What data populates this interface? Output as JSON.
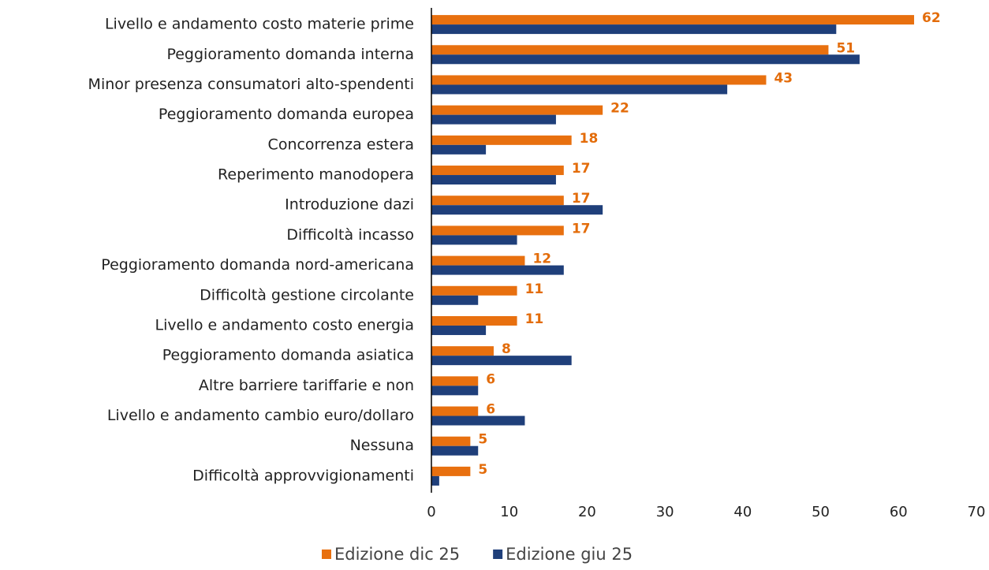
{
  "chart_data": {
    "type": "hbar",
    "categories": [
      "Livello e andamento costo materie prime",
      "Peggioramento domanda interna",
      "Minor presenza consumatori alto-spendenti",
      "Peggioramento domanda europea",
      "Concorrenza estera",
      "Reperimento manodopera",
      "Introduzione dazi",
      "Difficoltà incasso",
      "Peggioramento domanda nord-americana",
      "Difficoltà gestione circolante",
      "Livello e andamento costo energia",
      "Peggioramento domanda asiatica",
      "Altre barriere tariffarie e non",
      "Livello e andamento cambio euro/dollaro",
      "Nessuna",
      "Difficoltà approvvigionamenti"
    ],
    "series": [
      {
        "name": "Edizione dic 25",
        "color": "#e8700f",
        "values": [
          62,
          51,
          43,
          22,
          18,
          17,
          17,
          17,
          12,
          11,
          11,
          8,
          6,
          6,
          5,
          5
        ],
        "show_labels": true
      },
      {
        "name": "Edizione giu 25",
        "color": "#1f3f7a",
        "values": [
          52,
          55,
          38,
          16,
          7,
          16,
          22,
          11,
          17,
          6,
          7,
          18,
          6,
          12,
          6,
          1
        ],
        "show_labels": false
      }
    ],
    "xlim": [
      0,
      70
    ],
    "xticks": [
      0,
      10,
      20,
      30,
      40,
      50,
      60,
      70
    ],
    "legend": "bottom"
  }
}
